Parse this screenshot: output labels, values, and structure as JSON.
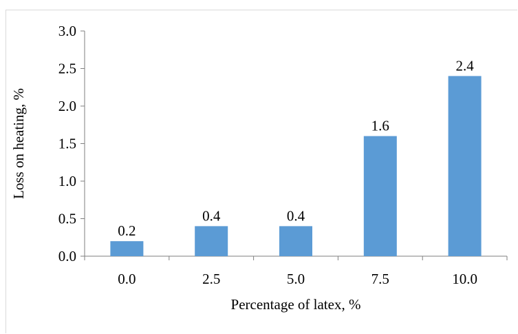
{
  "chart_data": {
    "type": "bar",
    "categories": [
      "0.0",
      "2.5",
      "5.0",
      "7.5",
      "10.0"
    ],
    "values": [
      0.2,
      0.4,
      0.4,
      1.6,
      2.4
    ],
    "data_labels": [
      "0.2",
      "0.4",
      "0.4",
      "1.6",
      "2.4"
    ],
    "y_ticks": [
      "0.0",
      "0.5",
      "1.0",
      "1.5",
      "2.0",
      "2.5",
      "3.0"
    ],
    "ylim": [
      0,
      3.0
    ],
    "xlabel": "Percentage of latex, %",
    "ylabel": "Loss on heating, %",
    "grid": false,
    "legend": "none",
    "bar_color": "#5b9bd5"
  }
}
